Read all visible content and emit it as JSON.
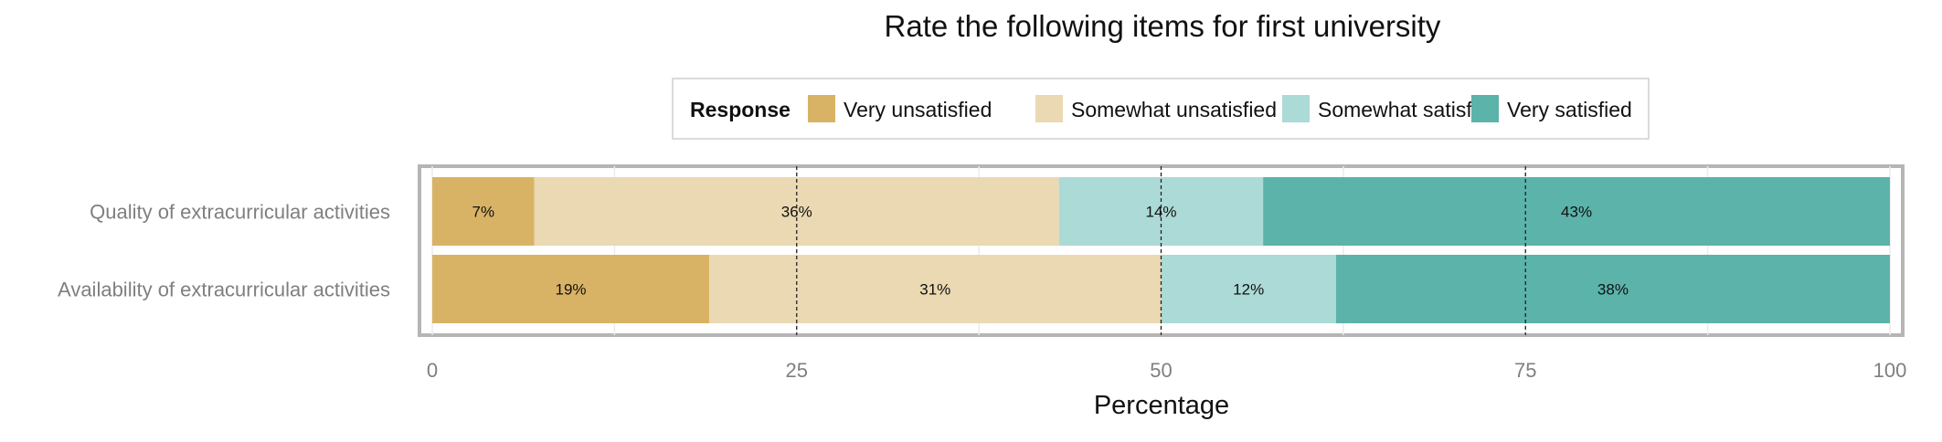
{
  "chart_data": {
    "type": "bar",
    "orientation": "horizontal",
    "stacked": true,
    "title": "Rate the following items for first university",
    "xlabel": "Percentage",
    "ylabel": "",
    "xlim": [
      0,
      100
    ],
    "x_ticks": [
      0,
      25,
      50,
      75,
      100
    ],
    "x_tick_labels": [
      "0",
      "25",
      "50",
      "75",
      "100"
    ],
    "reference_lines": [
      25,
      50,
      75
    ],
    "grid": true,
    "legend": {
      "title": "Response",
      "position": "top"
    },
    "categories": [
      "Quality of extracurricular activities",
      "Availability of extracurricular activities"
    ],
    "series": [
      {
        "name": "Very unsatisfied",
        "color": "#D9B365",
        "values": [
          7,
          19
        ],
        "labels": [
          "7%",
          "19%"
        ]
      },
      {
        "name": "Somewhat unsatisfied",
        "color": "#EAD9B2",
        "values": [
          36,
          31
        ],
        "labels": [
          "36%",
          "31%"
        ]
      },
      {
        "name": "Somewhat satisfied",
        "color": "#ACDAD6",
        "values": [
          14,
          12
        ],
        "labels": [
          "14%",
          "12%"
        ]
      },
      {
        "name": "Very satisfied",
        "color": "#5BB3AA",
        "values": [
          43,
          38
        ],
        "labels": [
          "43%",
          "38%"
        ]
      }
    ]
  }
}
